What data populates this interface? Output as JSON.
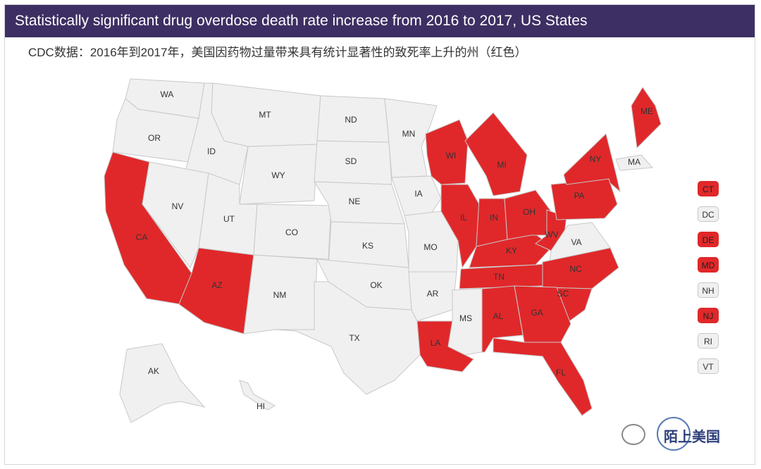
{
  "header": {
    "title": "Statistically significant drug overdose death rate increase from 2016 to 2017, US States"
  },
  "subtitle": "CDC数据：2016年到2017年，美国因药物过量带来具有统计显著性的致死率上升的州（红色）",
  "colors": {
    "increase": "#e0282a",
    "no_increase": "#f0f0f0",
    "header_bg": "#3d2f63"
  },
  "states": [
    {
      "code": "WA",
      "increase": false
    },
    {
      "code": "OR",
      "increase": false
    },
    {
      "code": "CA",
      "increase": true
    },
    {
      "code": "ID",
      "increase": false
    },
    {
      "code": "NV",
      "increase": false
    },
    {
      "code": "MT",
      "increase": false
    },
    {
      "code": "WY",
      "increase": false
    },
    {
      "code": "UT",
      "increase": false
    },
    {
      "code": "AZ",
      "increase": true
    },
    {
      "code": "CO",
      "increase": false
    },
    {
      "code": "NM",
      "increase": false
    },
    {
      "code": "ND",
      "increase": false
    },
    {
      "code": "SD",
      "increase": false
    },
    {
      "code": "NE",
      "increase": false
    },
    {
      "code": "KS",
      "increase": false
    },
    {
      "code": "OK",
      "increase": false
    },
    {
      "code": "TX",
      "increase": false
    },
    {
      "code": "MN",
      "increase": false
    },
    {
      "code": "IA",
      "increase": false
    },
    {
      "code": "MO",
      "increase": false
    },
    {
      "code": "AR",
      "increase": false
    },
    {
      "code": "LA",
      "increase": true
    },
    {
      "code": "WI",
      "increase": true
    },
    {
      "code": "IL",
      "increase": true
    },
    {
      "code": "MS",
      "increase": false
    },
    {
      "code": "MI",
      "increase": true
    },
    {
      "code": "IN",
      "increase": true
    },
    {
      "code": "KY",
      "increase": true
    },
    {
      "code": "TN",
      "increase": true
    },
    {
      "code": "AL",
      "increase": true
    },
    {
      "code": "OH",
      "increase": true
    },
    {
      "code": "WV",
      "increase": true
    },
    {
      "code": "VA",
      "increase": false
    },
    {
      "code": "NC",
      "increase": true
    },
    {
      "code": "SC",
      "increase": true
    },
    {
      "code": "GA",
      "increase": true
    },
    {
      "code": "FL",
      "increase": true
    },
    {
      "code": "PA",
      "increase": true
    },
    {
      "code": "NY",
      "increase": true
    },
    {
      "code": "ME",
      "increase": true
    },
    {
      "code": "MA",
      "increase": false
    },
    {
      "code": "AK",
      "increase": false
    },
    {
      "code": "HI",
      "increase": false
    }
  ],
  "small_states": [
    {
      "code": "CT",
      "increase": true
    },
    {
      "code": "DC",
      "increase": false
    },
    {
      "code": "DE",
      "increase": true
    },
    {
      "code": "MD",
      "increase": true
    },
    {
      "code": "NH",
      "increase": false
    },
    {
      "code": "NJ",
      "increase": true
    },
    {
      "code": "RI",
      "increase": false
    },
    {
      "code": "VT",
      "increase": false
    }
  ],
  "watermark": {
    "text": "陌上美国"
  }
}
